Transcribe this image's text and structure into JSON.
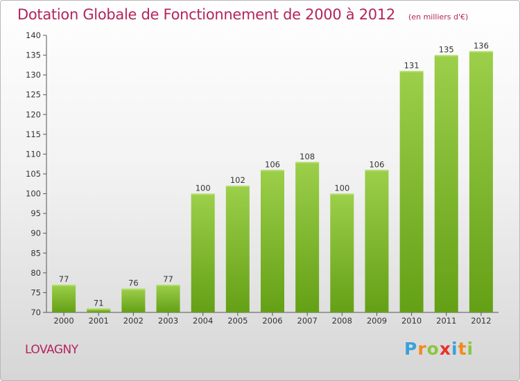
{
  "chart_data": {
    "type": "bar",
    "title": "Dotation Globale de Fonctionnement de 2000 à 2012",
    "subtitle": "(en milliers d'€)",
    "categories": [
      "2000",
      "2001",
      "2002",
      "2003",
      "2004",
      "2005",
      "2006",
      "2007",
      "2008",
      "2009",
      "2010",
      "2011",
      "2012"
    ],
    "values": [
      77,
      71,
      76,
      77,
      100,
      102,
      106,
      108,
      100,
      106,
      131,
      135,
      136
    ],
    "ylim": [
      70,
      140
    ],
    "yticks": [
      70,
      75,
      80,
      85,
      90,
      95,
      100,
      105,
      110,
      115,
      120,
      125,
      130,
      135,
      140
    ],
    "grid": false,
    "bar_color_top": "#9ccf4a",
    "bar_color_bottom": "#64a016"
  },
  "footer": {
    "commune": "LOVAGNY",
    "logo_letters": [
      "P",
      "r",
      "o",
      "x",
      "i",
      "t",
      "i"
    ],
    "logo_colors": [
      "#3aa0dc",
      "#f08a1e",
      "#8cc63e",
      "#e8322a",
      "#3aa0dc",
      "#f08a1e",
      "#8cc63e"
    ]
  }
}
